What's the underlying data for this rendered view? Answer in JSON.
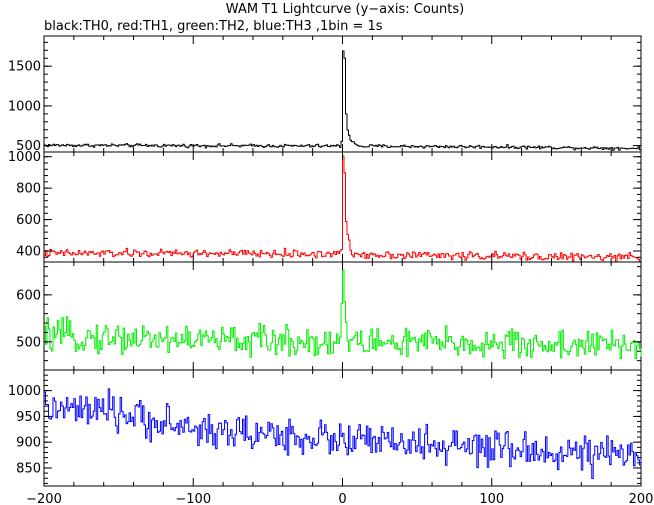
{
  "title": "WAM T1 Lightcurve (y−axis: Counts)",
  "subtitle": "black:TH0, red:TH1, green:TH2, blue:TH3 ,1bin = 1s",
  "chart_data": {
    "type": "line",
    "title": "WAM T1 Lightcurve (y−axis: Counts)",
    "subtitle": "black:TH0, red:TH1, green:TH2, blue:TH3 ,1bin = 1s",
    "xlabel": "",
    "xlim": [
      -200,
      200
    ],
    "xticks": [
      -200,
      -100,
      0,
      100,
      200
    ],
    "xtick_labels": [
      "−200",
      "−100",
      "0",
      "100",
      "200"
    ],
    "grid": false,
    "panels": [
      {
        "name": "TH0",
        "color": "#000000",
        "ylim": [
          420,
          1880
        ],
        "yticks": [
          500,
          1000,
          1500
        ],
        "baseline": [
          [
            -200,
            505
          ],
          [
            -100,
            500
          ],
          [
            0,
            495
          ],
          [
            100,
            485
          ],
          [
            200,
            465
          ]
        ],
        "noise": 18,
        "peak": [
          [
            -1,
            560
          ],
          [
            0,
            1700
          ],
          [
            0.5,
            1880
          ],
          [
            1,
            1600
          ],
          [
            2,
            900
          ],
          [
            3,
            700
          ],
          [
            5,
            580
          ],
          [
            8,
            520
          ]
        ]
      },
      {
        "name": "TH1",
        "color": "#ff0000",
        "ylim": [
          330,
          1030
        ],
        "yticks": [
          400,
          600,
          800,
          1000
        ],
        "baseline": [
          [
            -200,
            385
          ],
          [
            -100,
            385
          ],
          [
            0,
            380
          ],
          [
            100,
            368
          ],
          [
            200,
            358
          ]
        ],
        "noise": 22,
        "peak": [
          [
            -1,
            430
          ],
          [
            0,
            1000
          ],
          [
            0.5,
            1030
          ],
          [
            1,
            900
          ],
          [
            2,
            600
          ],
          [
            3,
            480
          ],
          [
            5,
            410
          ]
        ]
      },
      {
        "name": "TH2",
        "color": "#00ee00",
        "ylim": [
          440,
          670
        ],
        "yticks": [
          500,
          600
        ],
        "baseline": [
          [
            -200,
            512
          ],
          [
            -100,
            505
          ],
          [
            0,
            500
          ],
          [
            100,
            495
          ],
          [
            200,
            492
          ]
        ],
        "noise": 28,
        "peak": [
          [
            -1,
            560
          ],
          [
            0,
            660
          ],
          [
            0.5,
            640
          ],
          [
            1,
            590
          ],
          [
            2,
            540
          ]
        ]
      },
      {
        "name": "TH3",
        "color": "#0000ff",
        "ylim": [
          815,
          1040
        ],
        "yticks": [
          850,
          900,
          950,
          1000
        ],
        "baseline": [
          [
            -200,
            965
          ],
          [
            -150,
            955
          ],
          [
            -100,
            925
          ],
          [
            -50,
            915
          ],
          [
            0,
            905
          ],
          [
            50,
            895
          ],
          [
            100,
            885
          ],
          [
            150,
            880
          ],
          [
            200,
            870
          ]
        ],
        "noise": 30,
        "peak": []
      }
    ]
  }
}
